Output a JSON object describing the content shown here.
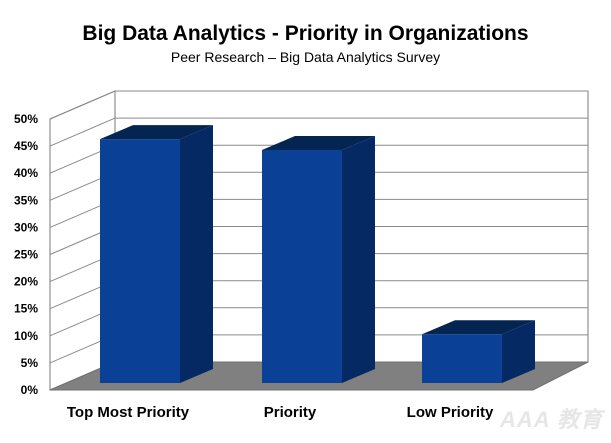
{
  "chart_data": {
    "type": "bar",
    "title": "Big Data Analytics - Priority in Organizations",
    "subtitle": "Peer Research – Big Data Analytics Survey",
    "categories": [
      "Top Most Priority",
      "Priority",
      "Low Priority"
    ],
    "values": [
      45,
      43,
      9
    ],
    "ylim": [
      0,
      50
    ],
    "yticks": [
      "0%",
      "5%",
      "10%",
      "15%",
      "20%",
      "25%",
      "30%",
      "35%",
      "40%",
      "45%",
      "50%"
    ],
    "ytick_values": [
      0,
      5,
      10,
      15,
      20,
      25,
      30,
      35,
      40,
      45,
      50
    ],
    "grid": true,
    "legend": "none",
    "colors": {
      "bar_front": "#0a4196",
      "bar_side": "#052a63",
      "bar_top": "#042452",
      "floor": "#808080"
    }
  },
  "watermark": "AAA 教育"
}
